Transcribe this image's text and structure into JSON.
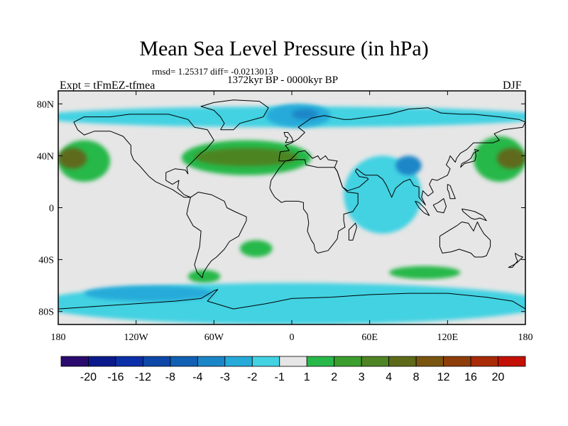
{
  "title": "Mean Sea Level Pressure (in hPa)",
  "stats": "rmsd= 1.25317 diff= -0.0213013",
  "period": "1372kyr BP - 0000kyr BP",
  "experiment": "Expt = tFmEZ-tfmea",
  "season": "DJF",
  "axes": {
    "lat_labels": [
      {
        "value": 80,
        "label": "80N"
      },
      {
        "value": 40,
        "label": "40N"
      },
      {
        "value": 0,
        "label": "0"
      },
      {
        "value": -40,
        "label": "40S"
      },
      {
        "value": -80,
        "label": "80S"
      }
    ],
    "lon_labels": [
      {
        "value": -180,
        "label": "180"
      },
      {
        "value": -120,
        "label": "120W"
      },
      {
        "value": -60,
        "label": "60W"
      },
      {
        "value": 0,
        "label": "0"
      },
      {
        "value": 60,
        "label": "60E"
      },
      {
        "value": 120,
        "label": "120E"
      },
      {
        "value": 180,
        "label": "180"
      }
    ],
    "lon_range": [
      -180,
      180
    ],
    "lat_range": [
      -90,
      90
    ]
  },
  "colorbar": {
    "colors": [
      "#2a0a6e",
      "#0a1a8c",
      "#0a2fa8",
      "#0d47a8",
      "#1160b4",
      "#1a86c8",
      "#25aad9",
      "#42d2e2",
      "#e6e6e6",
      "#28b84a",
      "#3c9e2e",
      "#4e8424",
      "#5e6a1a",
      "#7a5510",
      "#8e3e0a",
      "#a82a06",
      "#c41004"
    ],
    "labels": [
      "-20",
      "-16",
      "-12",
      "-8",
      "-4",
      "-3",
      "-2",
      "-1",
      "1",
      "2",
      "3",
      "4",
      "8",
      "12",
      "16",
      "20"
    ]
  },
  "map_data": {
    "background_color": "#e6e6e6",
    "regions": [
      {
        "name": "arctic-negative-band",
        "color": "#42d2e2",
        "lon": [
          -180,
          180
        ],
        "lat": [
          62,
          78
        ]
      },
      {
        "name": "north-atlantic-low",
        "color": "#25aad9",
        "lon": [
          -20,
          30
        ],
        "lat": [
          62,
          80
        ]
      },
      {
        "name": "north-atlantic-low-core",
        "color": "#1a86c8",
        "lon": [
          0,
          20
        ],
        "lat": [
          68,
          76
        ]
      },
      {
        "name": "north-pacific-high-west",
        "color": "#28b84a",
        "lon": [
          -180,
          -140
        ],
        "lat": [
          20,
          52
        ]
      },
      {
        "name": "north-pacific-high-west-core",
        "color": "#5e6a1a",
        "lon": [
          -180,
          -158
        ],
        "lat": [
          30,
          46
        ]
      },
      {
        "name": "north-atlantic-high",
        "color": "#28b84a",
        "lon": [
          -85,
          15
        ],
        "lat": [
          25,
          52
        ]
      },
      {
        "name": "north-atlantic-high-core",
        "color": "#4e8424",
        "lon": [
          -75,
          5
        ],
        "lat": [
          32,
          46
        ]
      },
      {
        "name": "north-pacific-high-east",
        "color": "#28b84a",
        "lon": [
          140,
          180
        ],
        "lat": [
          20,
          55
        ]
      },
      {
        "name": "north-pacific-high-east-core",
        "color": "#5e6a1a",
        "lon": [
          158,
          180
        ],
        "lat": [
          30,
          46
        ]
      },
      {
        "name": "indian-ocean-low",
        "color": "#42d2e2",
        "lon": [
          40,
          100
        ],
        "lat": [
          -20,
          40
        ]
      },
      {
        "name": "asia-low",
        "color": "#1a86c8",
        "lon": [
          80,
          100
        ],
        "lat": [
          25,
          40
        ]
      },
      {
        "name": "south-atlantic-high",
        "color": "#28b84a",
        "lon": [
          -40,
          -15
        ],
        "lat": [
          -38,
          -25
        ]
      },
      {
        "name": "south-indian-high",
        "color": "#28b84a",
        "lon": [
          75,
          130
        ],
        "lat": [
          -55,
          -45
        ]
      },
      {
        "name": "south-america-tip-high",
        "color": "#28b84a",
        "lon": [
          -80,
          -55
        ],
        "lat": [
          -58,
          -48
        ]
      },
      {
        "name": "southern-ocean-low",
        "color": "#42d2e2",
        "lon": [
          -180,
          180
        ],
        "lat": [
          -90,
          -58
        ]
      },
      {
        "name": "antarctic-strong-low",
        "color": "#25aad9",
        "lon": [
          -160,
          -60
        ],
        "lat": [
          -72,
          -60
        ]
      }
    ]
  }
}
